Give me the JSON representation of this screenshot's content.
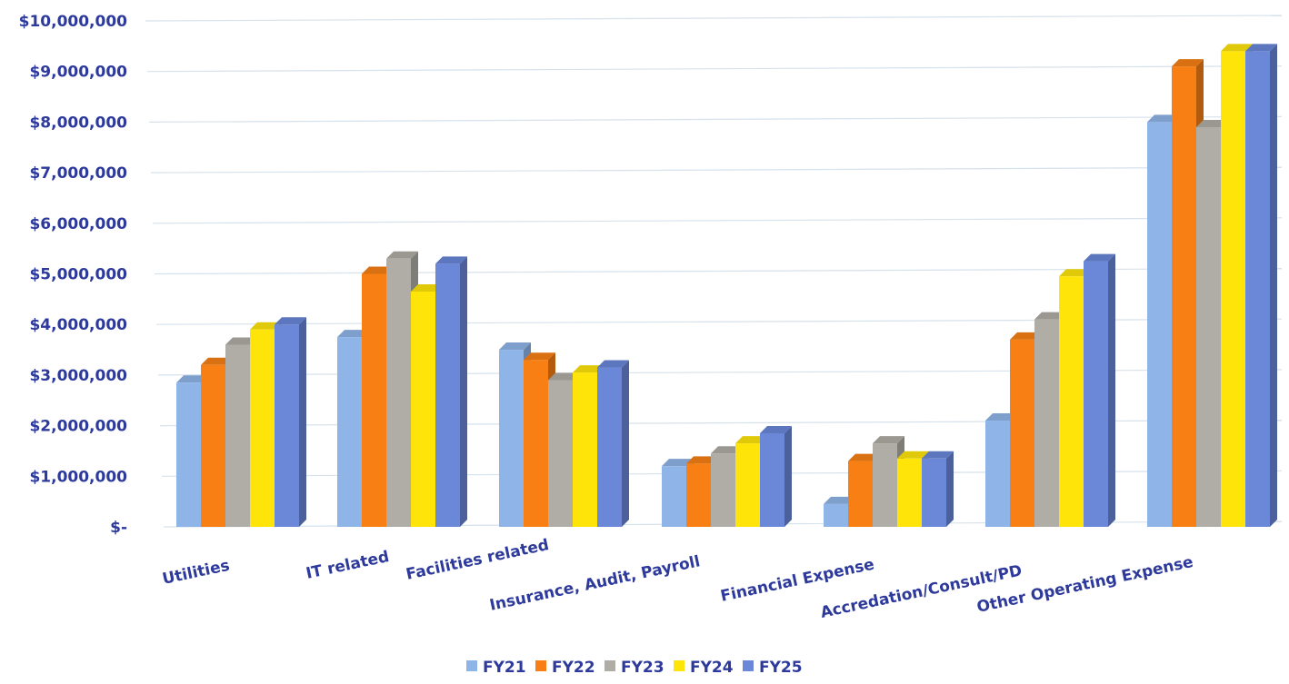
{
  "chart_data": {
    "type": "bar",
    "title": "",
    "xlabel": "",
    "ylabel": "",
    "ylim": [
      0,
      10000000
    ],
    "yticks": [
      0,
      1000000,
      2000000,
      3000000,
      4000000,
      5000000,
      6000000,
      7000000,
      8000000,
      9000000,
      10000000
    ],
    "ytick_labels": [
      "$-",
      "$1,000,000",
      "$2,000,000",
      "$3,000,000",
      "$4,000,000",
      "$5,000,000",
      "$6,000,000",
      "$7,000,000",
      "$8,000,000",
      "$9,000,000",
      "$10,000,000"
    ],
    "categories": [
      "Utilities",
      "IT related",
      "Facilities related",
      "Insurance, Audit, Payroll",
      "Financial Expense",
      "Accredation/Consult/PD",
      "Other Operating Expense"
    ],
    "grid": true,
    "legend_position": "bottom",
    "series": [
      {
        "name": "FY21",
        "color": "#8fb4e8",
        "values": [
          2850000,
          3750000,
          3500000,
          1200000,
          450000,
          2100000,
          8000000
        ]
      },
      {
        "name": "FY22",
        "color": "#f77f14",
        "values": [
          3200000,
          5000000,
          3300000,
          1250000,
          1300000,
          3700000,
          9100000
        ]
      },
      {
        "name": "FY23",
        "color": "#b0ada6",
        "values": [
          3600000,
          5300000,
          2900000,
          1450000,
          1650000,
          4100000,
          7900000
        ]
      },
      {
        "name": "FY24",
        "color": "#ffe40a",
        "values": [
          3900000,
          4650000,
          3050000,
          1650000,
          1350000,
          4950000,
          9400000
        ]
      },
      {
        "name": "FY25",
        "color": "#6a87d8",
        "values": [
          4000000,
          5200000,
          3150000,
          1850000,
          1350000,
          5250000,
          9400000
        ]
      }
    ]
  }
}
